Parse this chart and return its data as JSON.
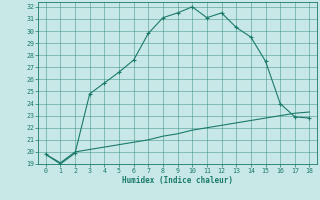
{
  "title": "",
  "xlabel": "Humidex (Indice chaleur)",
  "bg_color": "#c8e8e8",
  "line_color": "#1a7a6a",
  "xlim": [
    -0.5,
    18.5
  ],
  "ylim": [
    19,
    32.4
  ],
  "xticks": [
    0,
    1,
    2,
    3,
    4,
    5,
    6,
    7,
    8,
    9,
    10,
    11,
    12,
    13,
    14,
    15,
    16,
    17,
    18
  ],
  "yticks": [
    19,
    20,
    21,
    22,
    23,
    24,
    25,
    26,
    27,
    28,
    29,
    30,
    31,
    32
  ],
  "curve1_x": [
    0,
    1,
    2,
    3,
    4,
    5,
    6,
    7,
    8,
    9,
    10,
    11,
    12,
    13,
    14,
    15,
    16,
    17,
    18
  ],
  "curve1_y": [
    19.8,
    19.0,
    19.9,
    24.8,
    25.7,
    26.6,
    27.6,
    29.8,
    31.1,
    31.5,
    32.0,
    31.1,
    31.5,
    30.3,
    29.5,
    27.5,
    24.0,
    22.9,
    22.8
  ],
  "curve2_x": [
    0,
    1,
    2,
    3,
    4,
    5,
    6,
    7,
    8,
    9,
    10,
    11,
    12,
    13,
    14,
    15,
    16,
    17,
    18
  ],
  "curve2_y": [
    19.8,
    19.1,
    20.0,
    20.2,
    20.4,
    20.6,
    20.8,
    21.0,
    21.3,
    21.5,
    21.8,
    22.0,
    22.2,
    22.4,
    22.6,
    22.8,
    23.0,
    23.2,
    23.3
  ]
}
